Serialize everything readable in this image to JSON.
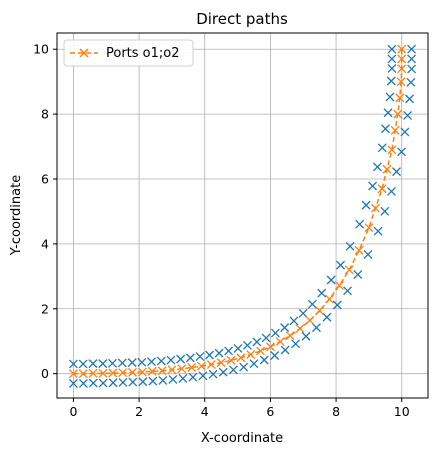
{
  "chart_data": {
    "type": "line",
    "title": "Direct paths",
    "xlabel": "X-coordinate",
    "ylabel": "Y-coordinate",
    "xlim": [
      -0.5,
      10.8
    ],
    "ylim": [
      -0.75,
      10.5
    ],
    "xticks": [
      0,
      2,
      4,
      6,
      8,
      10
    ],
    "yticks": [
      0,
      2,
      4,
      6,
      8,
      10
    ],
    "grid": true,
    "legend_position": "upper-left",
    "legend": [
      {
        "label": "Ports o1;o2",
        "color": "#ff7f0e",
        "marker": "x",
        "linestyle": "dashed"
      }
    ],
    "series": [
      {
        "name": "Ports o1;o2",
        "color": "#ff7f0e",
        "marker": "x",
        "linestyle": "dashed",
        "x": [
          0,
          0.3,
          0.6,
          0.9,
          1.2,
          1.5,
          1.8,
          2.1,
          2.4,
          2.7,
          3.0,
          3.3,
          3.6,
          3.9,
          4.2,
          4.5,
          4.8,
          5.1,
          5.4,
          5.7,
          6.0,
          6.3,
          6.6,
          6.9,
          7.2,
          7.5,
          7.8,
          8.1,
          8.4,
          8.7,
          9.0,
          9.2,
          9.4,
          9.55,
          9.7,
          9.8,
          9.88,
          9.94,
          9.98,
          10.0,
          10.0,
          10.0
        ],
        "y": [
          0,
          0,
          0.01,
          0.01,
          0.02,
          0.03,
          0.04,
          0.05,
          0.07,
          0.09,
          0.12,
          0.15,
          0.19,
          0.23,
          0.28,
          0.34,
          0.41,
          0.49,
          0.59,
          0.7,
          0.83,
          0.99,
          1.17,
          1.39,
          1.64,
          1.94,
          2.3,
          2.72,
          3.2,
          3.8,
          4.5,
          5.1,
          5.7,
          6.3,
          6.9,
          7.5,
          8.0,
          8.5,
          9.0,
          9.4,
          9.7,
          10.0
        ]
      },
      {
        "name": "",
        "color": "#1f77b4",
        "marker": "x",
        "linestyle": "none",
        "x": [
          0,
          0.3,
          0.6,
          0.9,
          1.2,
          1.5,
          1.8,
          2.1,
          2.4,
          2.7,
          3.0,
          3.3,
          3.6,
          3.9,
          4.2,
          4.5,
          4.8,
          5.1,
          5.4,
          5.7,
          6.0,
          6.3,
          6.6,
          6.9,
          7.2,
          7.5,
          7.8,
          8.1,
          8.4,
          8.7,
          9.0,
          9.2,
          9.4,
          9.55,
          9.7,
          9.8,
          9.88,
          9.94,
          9.98,
          10.0,
          10.0,
          10.0
        ],
        "y": [
          0,
          0,
          0.01,
          0.01,
          0.02,
          0.03,
          0.04,
          0.05,
          0.07,
          0.09,
          0.12,
          0.15,
          0.19,
          0.23,
          0.28,
          0.34,
          0.41,
          0.49,
          0.59,
          0.7,
          0.83,
          0.99,
          1.17,
          1.39,
          1.64,
          1.94,
          2.3,
          2.72,
          3.2,
          3.8,
          4.5,
          5.1,
          5.7,
          6.3,
          6.9,
          7.5,
          8.0,
          8.5,
          9.0,
          9.4,
          9.7,
          10.0
        ],
        "offset": 0.3
      }
    ]
  }
}
